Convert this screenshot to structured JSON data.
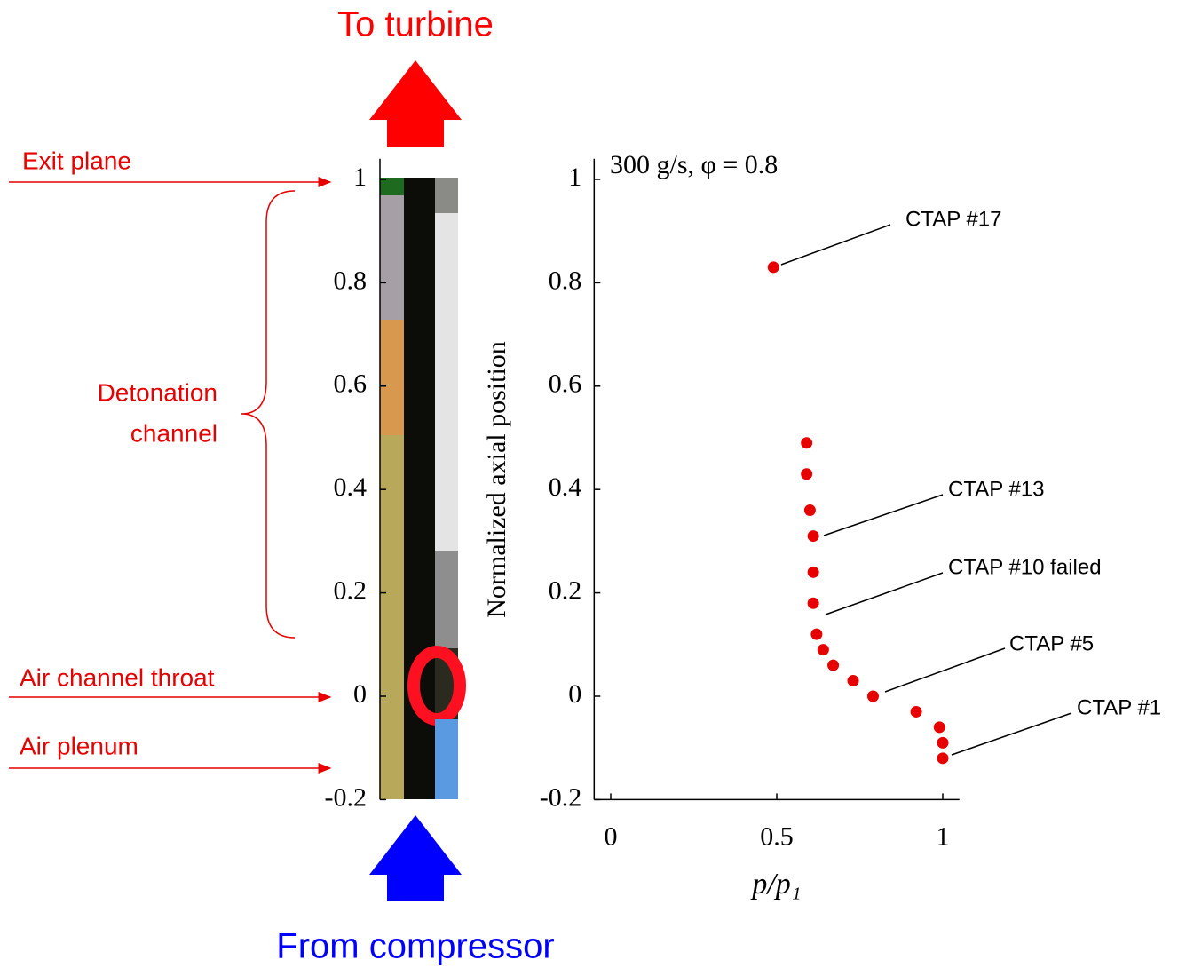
{
  "flow": {
    "top": "To turbine",
    "bottom": "From compressor"
  },
  "regions": {
    "exit": "Exit plane",
    "channel": [
      "Detonation",
      "channel"
    ],
    "throat": "Air channel throat",
    "plenum": "Air plenum"
  },
  "chart_data": [
    {
      "type": "strip",
      "ylim": [
        -0.2,
        1.04
      ],
      "yticks": [
        -0.2,
        0,
        0.2,
        0.4,
        0.6,
        0.8,
        1
      ]
    },
    {
      "type": "scatter",
      "title": "300 g/s, φ = 0.8",
      "xlabel": "p/p₁",
      "ylabel": "Normalized axial position",
      "x": [
        0.49,
        0.59,
        0.59,
        0.6,
        0.61,
        0.61,
        0.61,
        0.62,
        0.64,
        0.67,
        0.73,
        0.79,
        0.92,
        0.99,
        1.0,
        1.0
      ],
      "series": [
        {
          "color": "#e60000",
          "values": [
            0.83,
            0.49,
            0.43,
            0.36,
            0.31,
            0.24,
            0.18,
            0.12,
            0.09,
            0.06,
            0.03,
            0.0,
            -0.03,
            -0.06,
            -0.09,
            -0.12
          ]
        }
      ],
      "xlim": [
        -0.05,
        1.05
      ],
      "ylim": [
        -0.2,
        1.04
      ],
      "xticks": [
        0,
        0.5,
        1
      ],
      "yticks": [
        -0.2,
        0,
        0.2,
        0.4,
        0.6,
        0.8,
        1
      ],
      "annotations": [
        "CTAP #17",
        "CTAP #13",
        "CTAP #10 failed",
        "CTAP #5",
        "CTAP #1"
      ]
    }
  ]
}
